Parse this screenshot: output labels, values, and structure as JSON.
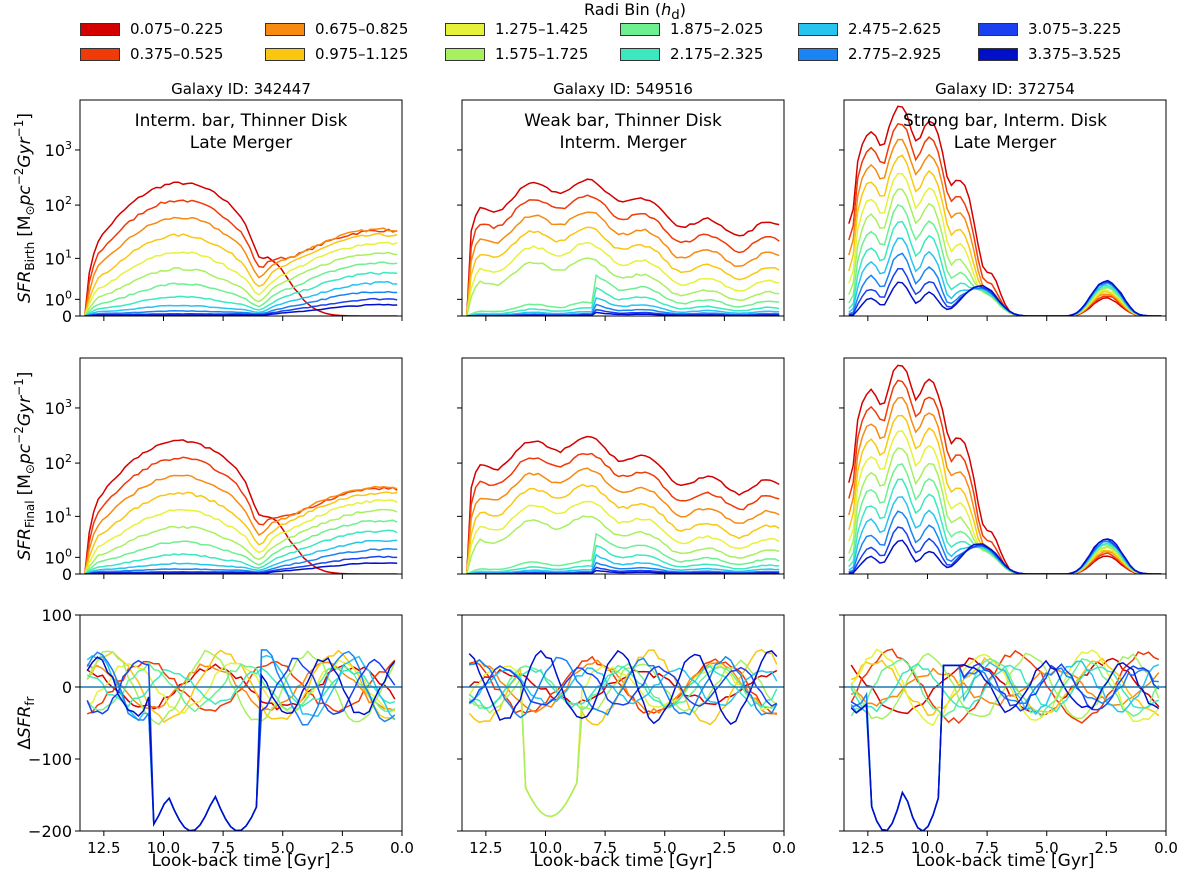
{
  "legend": {
    "title_main": "Radi Bin (",
    "title_var": "h",
    "title_sub": "d",
    "title_end": ")",
    "items": [
      {
        "label": "0.075–0.225",
        "color": "#d40000"
      },
      {
        "label": "0.375–0.525",
        "color": "#f03a08"
      },
      {
        "label": "0.675–0.825",
        "color": "#f78a10"
      },
      {
        "label": "0.975–1.125",
        "color": "#f9c710"
      },
      {
        "label": "1.275–1.425",
        "color": "#e6f23a"
      },
      {
        "label": "1.575–1.725",
        "color": "#a8f060"
      },
      {
        "label": "1.875–2.025",
        "color": "#6ef090"
      },
      {
        "label": "2.175–2.325",
        "color": "#3ce8c0"
      },
      {
        "label": "2.475–2.625",
        "color": "#28c4f0"
      },
      {
        "label": "2.775–2.925",
        "color": "#1a84f5"
      },
      {
        "label": "3.075–3.225",
        "color": "#1a40f0"
      },
      {
        "label": "3.375–3.525",
        "color": "#0010c8"
      }
    ]
  },
  "galaxies": [
    {
      "id_label": "Galaxy ID: 342447",
      "desc1": "Interm. bar, Thinner Disk",
      "desc2": "Late Merger"
    },
    {
      "id_label": "Galaxy ID: 549516",
      "desc1": "Weak bar, Thinner Disk",
      "desc2": "Interm. Merger"
    },
    {
      "id_label": "Galaxy ID: 372754",
      "desc1": "Strong bar, Interm. Disk",
      "desc2": "Late Merger"
    }
  ],
  "ylabels": {
    "birth_base": "SFR",
    "birth_sub": "Birth",
    "final_base": "SFR",
    "final_sub": "Final",
    "unit_prefix": "[M",
    "unit_sun": "⊙",
    "unit_mid": "pc",
    "unit_exp1": "−2",
    "unit_gyr": "Gyr",
    "unit_exp2": "−1",
    "unit_end": "]",
    "delta_prefix": "Δ",
    "delta_base": "SFR",
    "delta_sub": "fr"
  },
  "xlabel": "Look-back time [Gyr]",
  "chart_data": {
    "type": "line",
    "x_range": [
      13.5,
      0.0
    ],
    "x_ticks": [
      "12.5",
      "10.0",
      "7.5",
      "5.0",
      "2.5",
      "0.0"
    ],
    "x_tick_values": [
      12.5,
      10.0,
      7.5,
      5.0,
      2.5,
      0.0
    ],
    "sfr_y_ticks": [
      {
        "value": 0,
        "base": "0",
        "exp": ""
      },
      {
        "value": 1,
        "base": "10",
        "exp": "0"
      },
      {
        "value": 10,
        "base": "10",
        "exp": "1"
      },
      {
        "value": 100,
        "base": "10",
        "exp": "2"
      },
      {
        "value": 1000,
        "base": "10",
        "exp": "3"
      }
    ],
    "sfr_y_scale": "symlog",
    "sfr_ylim": [
      0,
      8000
    ],
    "delta_ylim": [
      -200,
      100
    ],
    "delta_y_ticks": [
      "100",
      "0",
      "−100",
      "−200"
    ],
    "delta_y_tick_values": [
      100,
      0,
      -100,
      -200
    ],
    "reference_line": 0,
    "panels": [
      {
        "row": "birth",
        "col": 0,
        "series": [
          {
            "bin": "0.075–0.225",
            "peak": 200
          },
          {
            "bin": "0.375–0.525",
            "peak": 60
          },
          {
            "bin": "0.675–0.825",
            "peak": 20
          },
          {
            "bin": "0.975–1.125",
            "peak": 10
          },
          {
            "bin": "1.275–1.425",
            "peak": 6
          },
          {
            "bin": "1.575–1.725",
            "peak": 4
          },
          {
            "bin": "1.875–2.025",
            "peak": 2
          },
          {
            "bin": "2.175–2.325",
            "peak": 1.2
          },
          {
            "bin": "2.475–2.625",
            "peak": 0.8
          },
          {
            "bin": "2.775–2.925",
            "peak": 0.6
          },
          {
            "bin": "3.075–3.225",
            "peak": 0.5
          },
          {
            "bin": "3.375–3.525",
            "peak": 0.4
          }
        ]
      }
    ]
  }
}
